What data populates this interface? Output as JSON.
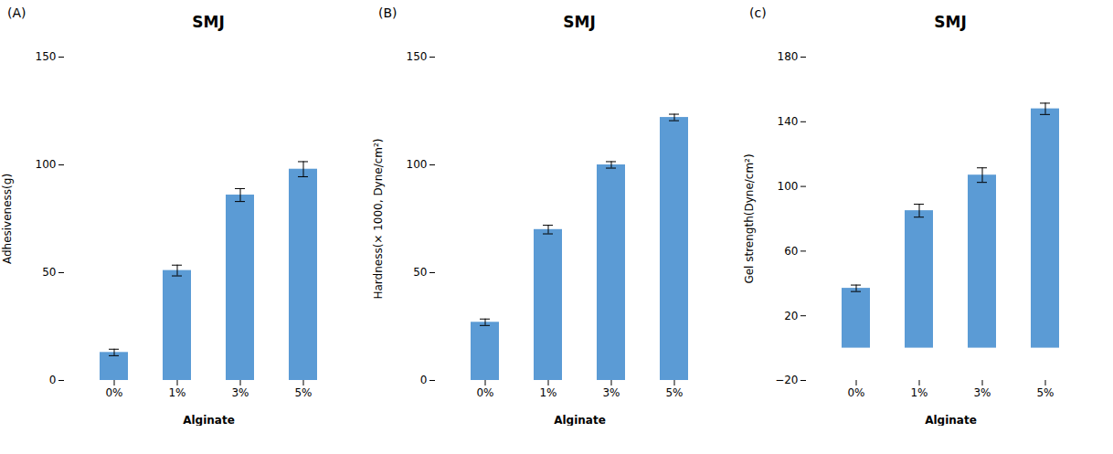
{
  "chart_data": [
    {
      "type": "bar",
      "title": "SMJ",
      "annotations": [
        "(A)"
      ],
      "xlabel": "Alginate",
      "ylabel": "Adhesiveness(g)",
      "categories": [
        "0%",
        "1%",
        "3%",
        "5%"
      ],
      "values": [
        13,
        51,
        86,
        98
      ],
      "errors": [
        1.5,
        2.5,
        3.0,
        3.5
      ],
      "color": "#5b9bd5",
      "ylim": [
        0,
        150
      ],
      "yticks": [
        0,
        50,
        100,
        150
      ],
      "grid": false
    },
    {
      "type": "bar",
      "title": "SMJ",
      "annotations": [
        "(B)"
      ],
      "xlabel": "Alginate",
      "ylabel": "Hardness(× 1000, Dyne/cm²)",
      "categories": [
        "0%",
        "1%",
        "3%",
        "5%"
      ],
      "values": [
        27,
        70,
        100,
        122
      ],
      "errors": [
        1.5,
        2.0,
        1.5,
        1.5
      ],
      "color": "#5b9bd5",
      "ylim": [
        0,
        150
      ],
      "yticks": [
        0,
        50,
        100,
        150
      ],
      "grid": false
    },
    {
      "type": "bar",
      "title": "SMJ",
      "annotations": [
        "(c)"
      ],
      "xlabel": "Alginate",
      "ylabel": "Gel strength(Dyne/cm²)",
      "categories": [
        "0%",
        "1%",
        "3%",
        "5%"
      ],
      "values": [
        37,
        85,
        107,
        148
      ],
      "errors": [
        2.0,
        4.0,
        4.5,
        3.5
      ],
      "color": "#5b9bd5",
      "ylim": [
        -20,
        180
      ],
      "yticks": [
        -20,
        20,
        60,
        100,
        140,
        180
      ],
      "grid": false
    }
  ]
}
